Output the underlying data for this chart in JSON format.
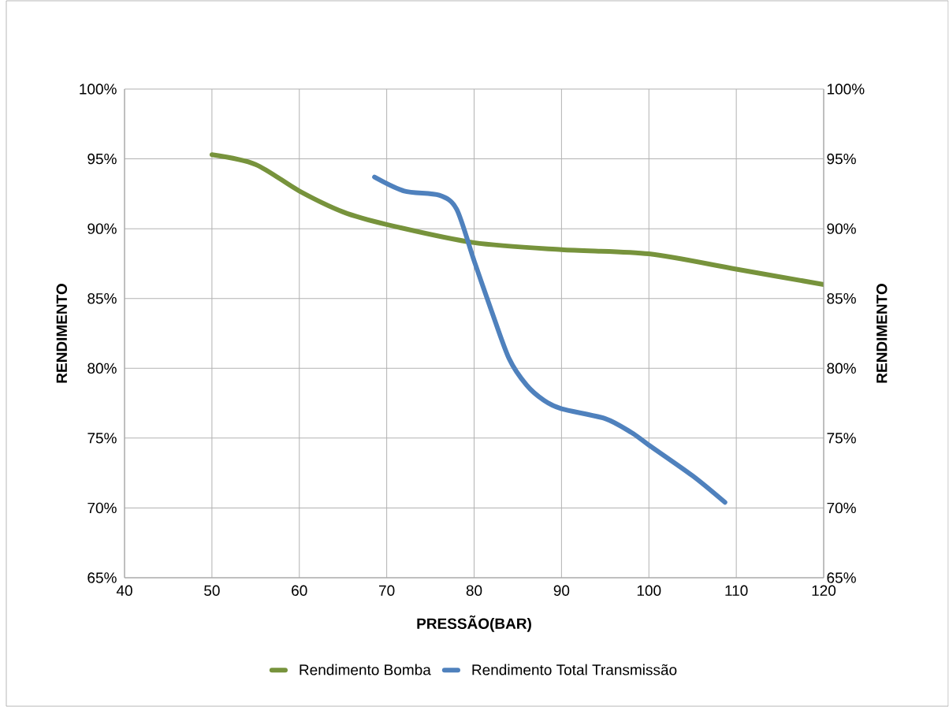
{
  "chart_data": {
    "type": "line",
    "xlabel": "PRESSÃO(BAR)",
    "ylabel": "RENDIMENTO",
    "y2label": "RENDIMENTO",
    "xlim": [
      40,
      120
    ],
    "xticks": [
      40,
      50,
      60,
      70,
      80,
      90,
      100,
      110,
      120
    ],
    "ylim": [
      65,
      100
    ],
    "yticks": [
      {
        "value": 65,
        "label": "65%"
      },
      {
        "value": 70,
        "label": "70%"
      },
      {
        "value": 75,
        "label": "75%"
      },
      {
        "value": 80,
        "label": "80%"
      },
      {
        "value": 85,
        "label": "85%"
      },
      {
        "value": 90,
        "label": "90%"
      },
      {
        "value": 95,
        "label": "95%"
      },
      {
        "value": 100,
        "label": "100%"
      }
    ],
    "y2lim": [
      65,
      100
    ],
    "y2ticks": [
      {
        "value": 65,
        "label": "65%"
      },
      {
        "value": 70,
        "label": "70%"
      },
      {
        "value": 75,
        "label": "75%"
      },
      {
        "value": 80,
        "label": "80%"
      },
      {
        "value": 85,
        "label": "85%"
      },
      {
        "value": 90,
        "label": "90%"
      },
      {
        "value": 95,
        "label": "95%"
      },
      {
        "value": 100,
        "label": "100%"
      }
    ],
    "grid": true,
    "legend": "bottom",
    "marker": "none",
    "line_style": "solid",
    "series": [
      {
        "name": "Rendimento Bomba",
        "color": "#77933c",
        "x": [
          50,
          55,
          60,
          65,
          70,
          80,
          90,
          100,
          110,
          120
        ],
        "values": [
          95.3,
          94.6,
          92.7,
          91.2,
          90.3,
          89.0,
          88.5,
          88.2,
          87.1,
          86.0
        ]
      },
      {
        "name": "Rendimento Total Transmissão",
        "color": "#4f81bd",
        "x": [
          68.6,
          72,
          76,
          78,
          80,
          82,
          84,
          86,
          88,
          90,
          95,
          98,
          100,
          105,
          108.7
        ],
        "values": [
          93.7,
          92.7,
          92.4,
          91.4,
          87.7,
          84.1,
          80.7,
          78.8,
          77.7,
          77.1,
          76.4,
          75.4,
          74.5,
          72.3,
          70.4
        ]
      }
    ]
  }
}
